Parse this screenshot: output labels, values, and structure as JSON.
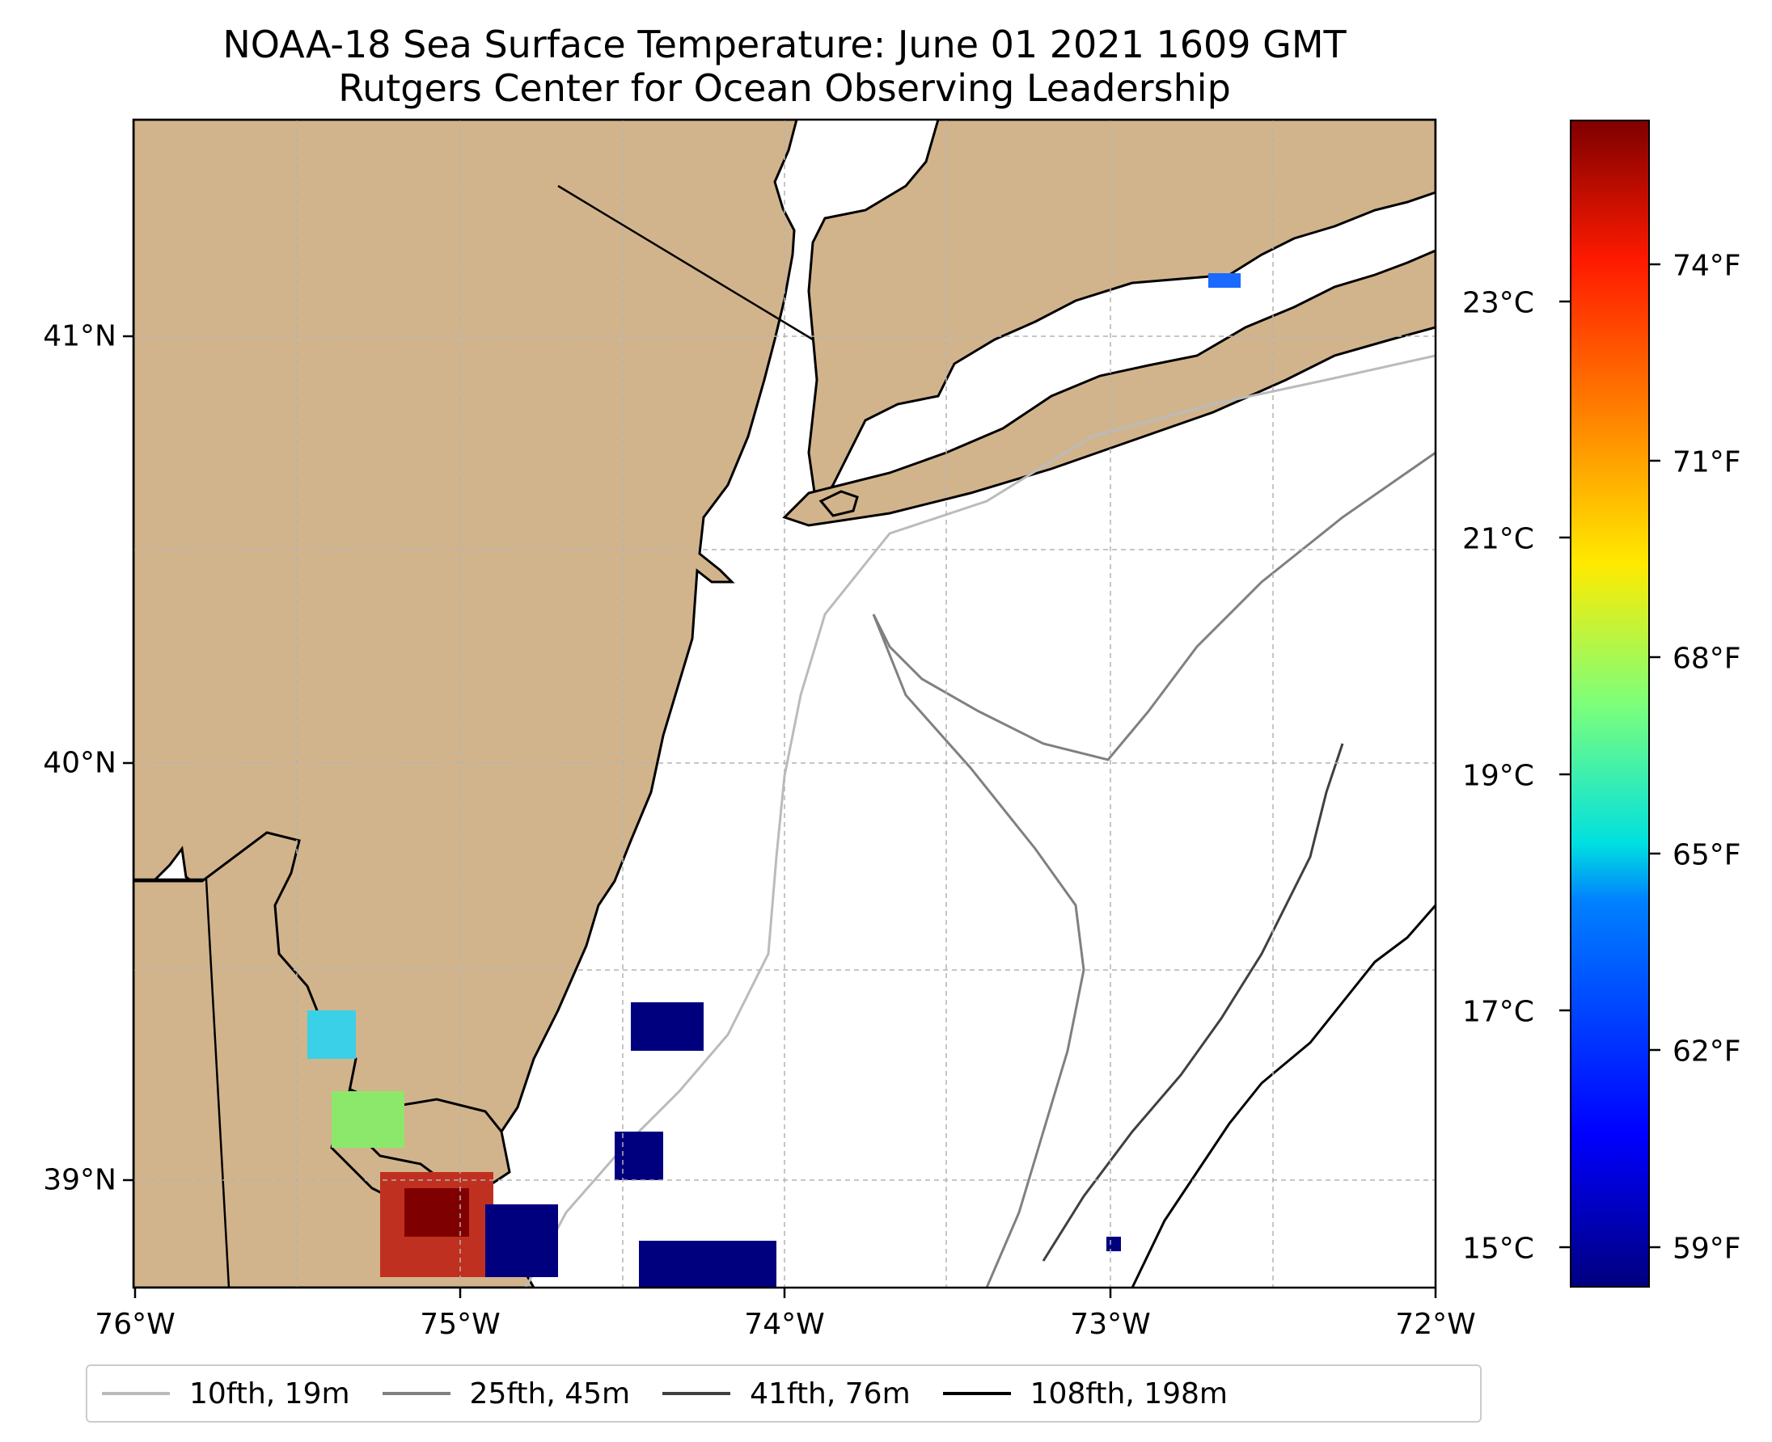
{
  "title": {
    "line1": "NOAA-18 Sea Surface Temperature: June 01 2021 1609 GMT",
    "line2": "Rutgers Center for Ocean Observing Leadership"
  },
  "axes": {
    "lon_ticks": [
      "76°W",
      "75°W",
      "74°W",
      "73°W",
      "72°W"
    ],
    "lat_ticks": [
      "41°N",
      "40°N",
      "39°N"
    ]
  },
  "colorbar": {
    "celsius_ticks": [
      "23°C",
      "21°C",
      "19°C",
      "17°C",
      "15°C"
    ],
    "fahrenheit_ticks": [
      "74°F",
      "71°F",
      "68°F",
      "65°F",
      "62°F",
      "59°F"
    ],
    "colormap": "jet"
  },
  "legend": {
    "items": [
      {
        "label": "10fth, 19m",
        "color": "#bbbbbb"
      },
      {
        "label": "25fth, 45m",
        "color": "#808080"
      },
      {
        "label": "41fth, 76m",
        "color": "#404040"
      },
      {
        "label": "108fth, 198m",
        "color": "#000000"
      }
    ]
  },
  "colors": {
    "land": "#d2b48c",
    "ocean": "#ffffff",
    "coast": "#000000"
  }
}
